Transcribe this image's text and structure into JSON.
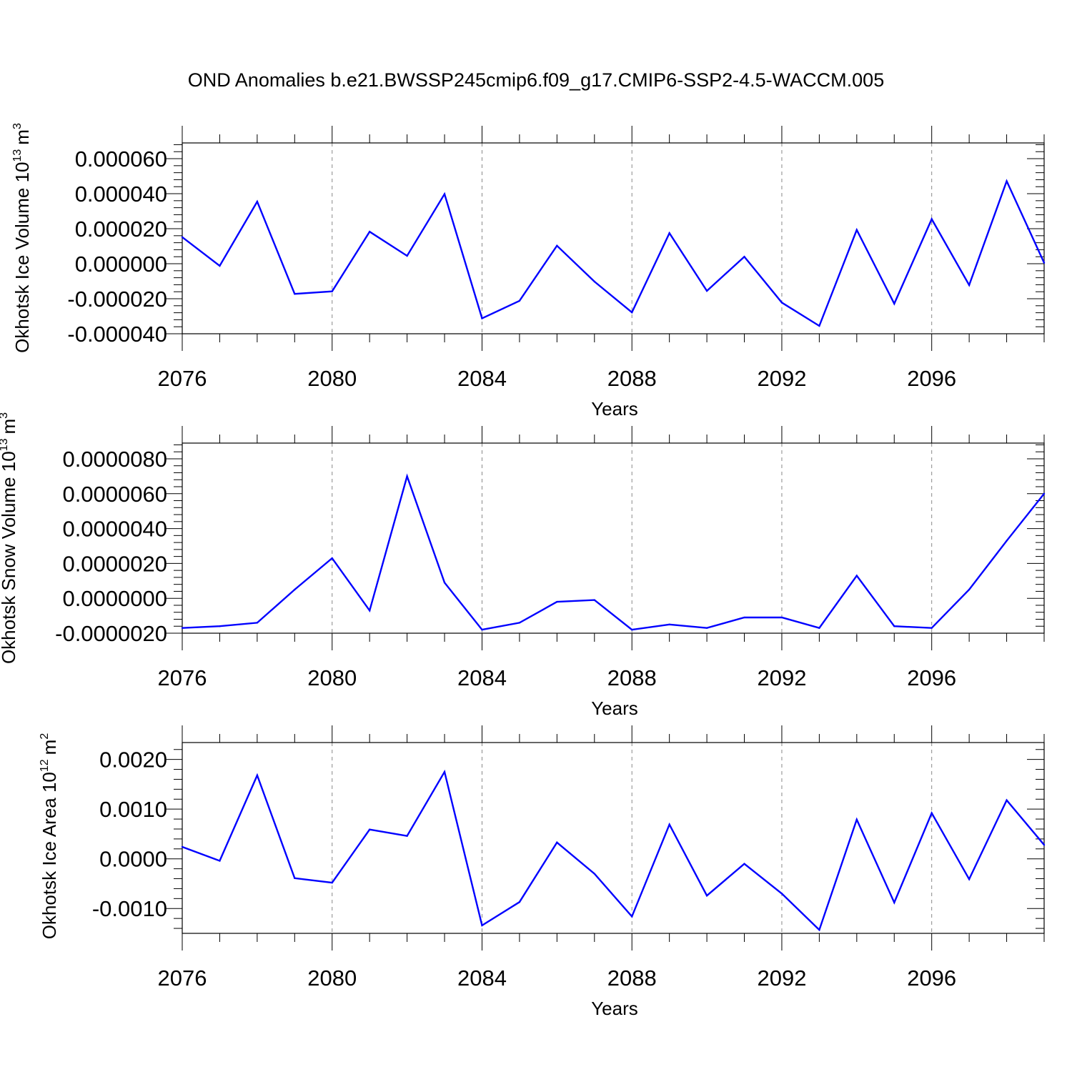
{
  "title": "OND Anomalies b.e21.BWSSP245cmip6.f09_g17.CMIP6-SSP2-4.5-WACCM.005",
  "colors": {
    "line": "#0000ff",
    "grid": "#888888",
    "axis": "#000000"
  },
  "chart_data": [
    {
      "type": "line",
      "ylabel": "Okhotsk Ice Volume 10",
      "ylabel_exp": "13",
      "ylabel_unit": "m",
      "ylabel_unit_exp": "3",
      "xlabel": "Years",
      "xlim": [
        2076,
        2099
      ],
      "ylim": [
        -4e-05,
        6.9e-05
      ],
      "xticks": [
        "2076",
        "2080",
        "2084",
        "2088",
        "2092",
        "2096"
      ],
      "yticks": [
        "-0.000040",
        "-0.000020",
        "0.000000",
        "0.000020",
        "0.000040",
        "0.000060"
      ],
      "x": [
        2076,
        2077,
        2078,
        2079,
        2080,
        2081,
        2082,
        2083,
        2084,
        2085,
        2086,
        2087,
        2088,
        2089,
        2090,
        2091,
        2092,
        2093,
        2094,
        2095,
        2096,
        2097,
        2098,
        2099
      ],
      "series": [
        {
          "values": [
            1.52e-05,
            -1.2e-06,
            3.55e-05,
            -1.72e-05,
            -1.58e-05,
            1.83e-05,
            4.5e-06,
            3.98e-05,
            -3.12e-05,
            -2.12e-05,
            1.03e-05,
            -1.02e-05,
            -2.78e-05,
            1.75e-05,
            -1.55e-05,
            4e-06,
            -2.22e-05,
            -3.55e-05,
            1.93e-05,
            -2.28e-05,
            2.55e-05,
            -1.22e-05,
            4.72e-05,
            5e-07
          ]
        }
      ]
    },
    {
      "type": "line",
      "ylabel": "Okhotsk Snow Volume 10",
      "ylabel_exp": "13",
      "ylabel_unit": "m",
      "ylabel_unit_exp": "3",
      "xlabel": "Years",
      "xlim": [
        2076,
        2099
      ],
      "ylim": [
        -2e-06,
        8.9e-06
      ],
      "xticks": [
        "2076",
        "2080",
        "2084",
        "2088",
        "2092",
        "2096"
      ],
      "yticks": [
        "-0.0000020",
        "0.0000000",
        "0.0000020",
        "0.0000040",
        "0.0000060",
        "0.0000080"
      ],
      "x": [
        2076,
        2077,
        2078,
        2079,
        2080,
        2081,
        2082,
        2083,
        2084,
        2085,
        2086,
        2087,
        2088,
        2089,
        2090,
        2091,
        2092,
        2093,
        2094,
        2095,
        2096,
        2097,
        2098,
        2099
      ],
      "series": [
        {
          "values": [
            -1.7e-06,
            -1.6e-06,
            -1.4e-06,
            5e-07,
            2.3e-06,
            -7e-07,
            7e-06,
            9e-07,
            -1.8e-06,
            -1.4e-06,
            -2e-07,
            -1e-07,
            -1.8e-06,
            -1.5e-06,
            -1.7e-06,
            -1.1e-06,
            -1.1e-06,
            -1.7e-06,
            1.3e-06,
            -1.6e-06,
            -1.7e-06,
            5e-07,
            3.3e-06,
            6e-06
          ]
        }
      ]
    },
    {
      "type": "line",
      "ylabel": "Okhotsk Ice Area 10",
      "ylabel_exp": "12",
      "ylabel_unit": "m",
      "ylabel_unit_exp": "2",
      "xlabel": "Years",
      "xlim": [
        2076,
        2099
      ],
      "ylim": [
        -0.0015,
        0.00234
      ],
      "xticks": [
        "2076",
        "2080",
        "2084",
        "2088",
        "2092",
        "2096"
      ],
      "yticks": [
        "-0.0010",
        "0.0000",
        "0.0010",
        "0.0020"
      ],
      "x": [
        2076,
        2077,
        2078,
        2079,
        2080,
        2081,
        2082,
        2083,
        2084,
        2085,
        2086,
        2087,
        2088,
        2089,
        2090,
        2091,
        2092,
        2093,
        2094,
        2095,
        2096,
        2097,
        2098,
        2099
      ],
      "series": [
        {
          "values": [
            0.00024,
            -4e-05,
            0.00168,
            -0.00039,
            -0.00048,
            0.00059,
            0.00046,
            0.00175,
            -0.00134,
            -0.00087,
            0.00033,
            -0.0003,
            -0.00116,
            0.00069,
            -0.00074,
            -0.0001,
            -0.0007,
            -0.00143,
            0.00079,
            -0.00088,
            0.00092,
            -0.00041,
            0.00118,
            0.00028
          ]
        }
      ]
    }
  ]
}
